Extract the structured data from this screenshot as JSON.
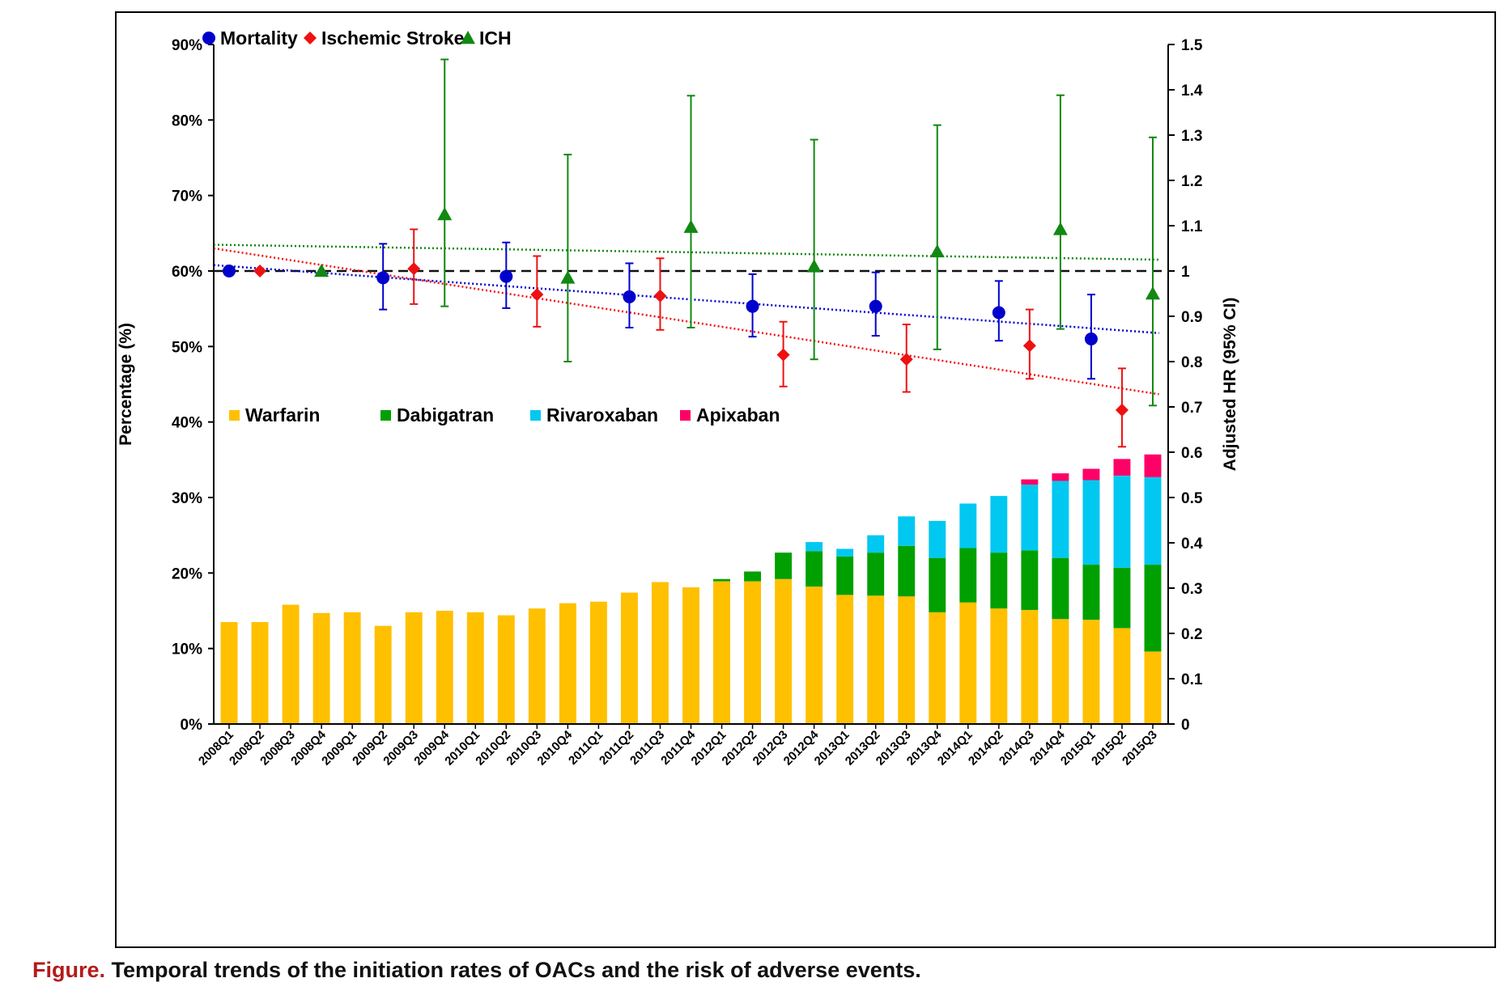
{
  "caption": {
    "label": "Figure.",
    "text": "Temporal trends of the initiation rates of OACs and the risk of adverse events."
  },
  "chart_data": {
    "type": "bar",
    "title": "",
    "categories": [
      "2008Q1",
      "2008Q2",
      "2008Q3",
      "2008Q4",
      "2009Q1",
      "2009Q2",
      "2009Q3",
      "2009Q4",
      "2010Q1",
      "2010Q2",
      "2010Q3",
      "2010Q4",
      "2011Q1",
      "2011Q2",
      "2011Q3",
      "2011Q4",
      "2012Q1",
      "2012Q2",
      "2012Q3",
      "2012Q4",
      "2013Q1",
      "2013Q2",
      "2013Q3",
      "2013Q4",
      "2014Q1",
      "2014Q2",
      "2014Q3",
      "2014Q4",
      "2015Q1",
      "2015Q2",
      "2015Q3"
    ],
    "ylabel": "Percentage (%)",
    "ylabel_right": "Adjusted HR (95% CI)",
    "ylim": [
      0,
      90
    ],
    "ylim_right": [
      0,
      1.5
    ],
    "yticks": [
      "0%",
      "10%",
      "20%",
      "30%",
      "40%",
      "50%",
      "60%",
      "70%",
      "80%",
      "90%"
    ],
    "yticks_right": [
      "0",
      "0.1",
      "0.2",
      "0.3",
      "0.4",
      "0.5",
      "0.6",
      "0.7",
      "0.8",
      "0.9",
      "1",
      "1.1",
      "1.2",
      "1.3",
      "1.4",
      "1.5"
    ],
    "reference_line": 1,
    "bar_series": [
      {
        "name": "Warfarin",
        "color": "#ffc000",
        "values": [
          13.5,
          13.5,
          15.8,
          14.7,
          14.8,
          13.0,
          14.8,
          15.0,
          14.8,
          14.4,
          15.3,
          16.0,
          16.2,
          17.4,
          18.8,
          18.1,
          18.9,
          18.9,
          19.2,
          18.2,
          17.1,
          17.0,
          16.9,
          14.8,
          16.1,
          15.3,
          15.1,
          13.9,
          13.8,
          12.7,
          9.6
        ]
      },
      {
        "name": "Dabigatran",
        "color": "#00a000",
        "values": [
          0,
          0,
          0,
          0,
          0,
          0,
          0,
          0,
          0,
          0,
          0,
          0,
          0,
          0,
          0,
          0,
          0.3,
          1.3,
          3.5,
          4.7,
          5.1,
          5.7,
          6.7,
          7.2,
          7.2,
          7.4,
          7.9,
          8.1,
          7.3,
          8.0,
          11.5
        ]
      },
      {
        "name": "Rivaroxaban",
        "color": "#00c8f0",
        "values": [
          0,
          0,
          0,
          0,
          0,
          0,
          0,
          0,
          0,
          0,
          0,
          0,
          0,
          0,
          0,
          0,
          0,
          0,
          0,
          1.2,
          1.0,
          2.3,
          3.9,
          4.9,
          5.9,
          7.5,
          8.7,
          10.2,
          11.2,
          12.2,
          11.6
        ]
      },
      {
        "name": "Apixaban",
        "color": "#ff0066",
        "values": [
          0,
          0,
          0,
          0,
          0,
          0,
          0,
          0,
          0,
          0,
          0,
          0,
          0,
          0,
          0,
          0,
          0,
          0,
          0,
          0,
          0,
          0,
          0,
          0,
          0,
          0,
          0.7,
          1.0,
          1.5,
          2.2,
          3.0
        ]
      }
    ],
    "hr_series": [
      {
        "name": "Mortality",
        "color": "#0000cc",
        "marker": "circle",
        "points": [
          {
            "x": "2008Q1",
            "y": 1.0
          },
          {
            "x": "2009Q2",
            "y": 0.985,
            "lo": 0.915,
            "hi": 1.06
          },
          {
            "x": "2010Q2",
            "y": 0.988,
            "lo": 0.918,
            "hi": 1.063
          },
          {
            "x": "2011Q2",
            "y": 0.943,
            "lo": 0.875,
            "hi": 1.017
          },
          {
            "x": "2012Q2",
            "y": 0.922,
            "lo": 0.855,
            "hi": 0.993
          },
          {
            "x": "2013Q2",
            "y": 0.922,
            "lo": 0.857,
            "hi": 0.997
          },
          {
            "x": "2014Q2",
            "y": 0.908,
            "lo": 0.846,
            "hi": 0.978
          },
          {
            "x": "2015Q1",
            "y": 0.85,
            "lo": 0.762,
            "hi": 0.948
          }
        ]
      },
      {
        "name": "Ischemic Stroke",
        "color": "#ee1111",
        "marker": "diamond",
        "points": [
          {
            "x": "2008Q2",
            "y": 1.0
          },
          {
            "x": "2009Q3",
            "y": 1.005,
            "lo": 0.927,
            "hi": 1.092
          },
          {
            "x": "2010Q3",
            "y": 0.948,
            "lo": 0.877,
            "hi": 1.033
          },
          {
            "x": "2011Q3",
            "y": 0.945,
            "lo": 0.87,
            "hi": 1.028
          },
          {
            "x": "2012Q3",
            "y": 0.815,
            "lo": 0.745,
            "hi": 0.888
          },
          {
            "x": "2013Q3",
            "y": 0.805,
            "lo": 0.733,
            "hi": 0.882
          },
          {
            "x": "2014Q3",
            "y": 0.835,
            "lo": 0.762,
            "hi": 0.915
          },
          {
            "x": "2015Q2",
            "y": 0.693,
            "lo": 0.612,
            "hi": 0.785
          }
        ]
      },
      {
        "name": "ICH",
        "color": "#118811",
        "marker": "triangle",
        "points": [
          {
            "x": "2008Q4",
            "y": 1.0
          },
          {
            "x": "2009Q4",
            "y": 1.125,
            "lo": 0.922,
            "hi": 1.467
          },
          {
            "x": "2010Q4",
            "y": 0.985,
            "lo": 0.8,
            "hi": 1.257
          },
          {
            "x": "2011Q4",
            "y": 1.097,
            "lo": 0.875,
            "hi": 1.387
          },
          {
            "x": "2012Q4",
            "y": 1.01,
            "lo": 0.805,
            "hi": 1.29
          },
          {
            "x": "2013Q4",
            "y": 1.043,
            "lo": 0.827,
            "hi": 1.322
          },
          {
            "x": "2014Q4",
            "y": 1.092,
            "lo": 0.872,
            "hi": 1.388
          },
          {
            "x": "2015Q3",
            "y": 0.95,
            "lo": 0.703,
            "hi": 1.295
          }
        ]
      }
    ],
    "trend_lines": [
      {
        "series": "Mortality",
        "color": "#0000cc",
        "from": {
          "x": "2008Q1",
          "y": 1.013
        },
        "to": {
          "x": "2015Q3",
          "y": 0.863
        }
      },
      {
        "series": "Ischemic Stroke",
        "color": "#ee1111",
        "from": {
          "x": "2008Q1",
          "y": 1.05
        },
        "to": {
          "x": "2015Q3",
          "y": 0.728
        }
      },
      {
        "series": "ICH",
        "color": "#118811",
        "from": {
          "x": "2008Q1",
          "y": 1.058
        },
        "to": {
          "x": "2015Q3",
          "y": 1.025
        }
      }
    ],
    "legend_top_position": "top-left",
    "legend_bars_position": "middle-left",
    "grid": false
  }
}
